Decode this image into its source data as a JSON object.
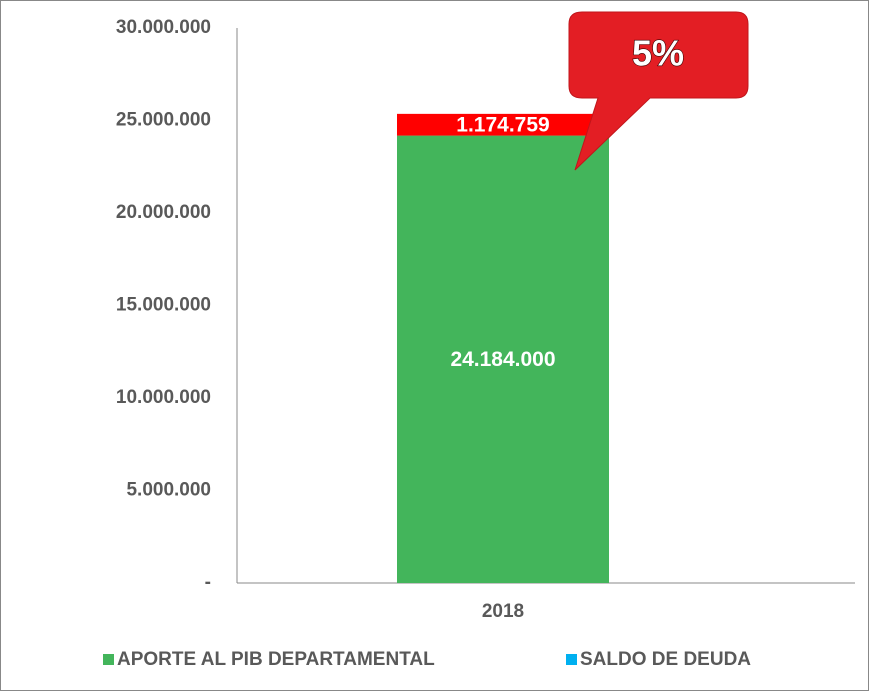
{
  "chart_data": {
    "type": "stacked_bar",
    "categories": [
      "2018"
    ],
    "series": [
      {
        "name": "APORTE AL PIB DEPARTAMENTAL",
        "color": "#43b55b",
        "legend_color": "#43b55b",
        "values": [
          24184000
        ],
        "value_labels": [
          "24.184.000"
        ]
      },
      {
        "name": "SALDO DE DEUDA",
        "color": "#ff0000",
        "legend_color": "#00b0f0",
        "values": [
          1174759
        ],
        "value_labels": [
          "1.174.759"
        ]
      }
    ],
    "ylim": [
      0,
      30000000
    ],
    "yticks": [
      {
        "value": 0,
        "label": "-"
      },
      {
        "value": 5000000,
        "label": "5.000.000"
      },
      {
        "value": 10000000,
        "label": "10.000.000"
      },
      {
        "value": 15000000,
        "label": "15.000.000"
      },
      {
        "value": 20000000,
        "label": "20.000.000"
      },
      {
        "value": 25000000,
        "label": "25.000.000"
      },
      {
        "value": 30000000,
        "label": "30.000.000"
      }
    ],
    "annotation": "5%"
  }
}
